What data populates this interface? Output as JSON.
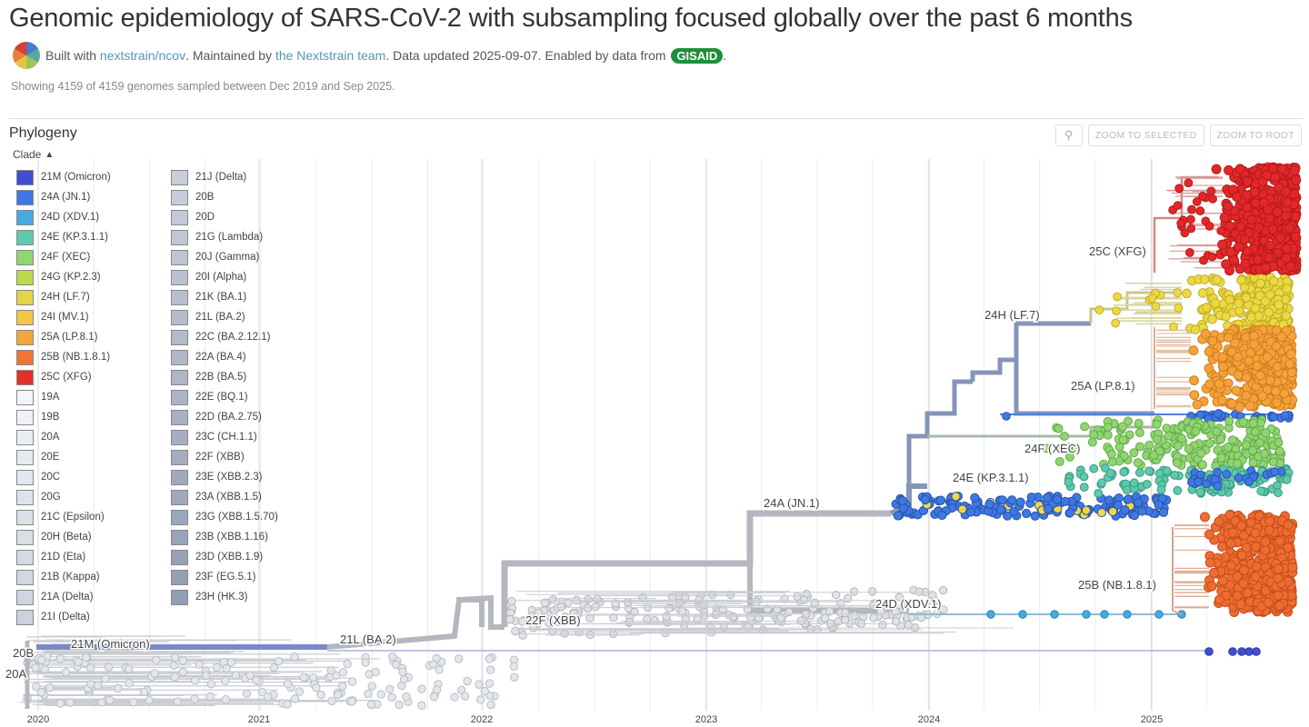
{
  "header": {
    "title": "Genomic epidemiology of SARS-CoV-2 with subsampling focused globally over the past 6 months",
    "built_with": "Built with",
    "build_link": "nextstrain/ncov",
    "maintained_by": ". Maintained by",
    "maintainer_link": "the Nextstrain team",
    "data_updated": ". Data updated 2025-09-07. Enabled by data from",
    "gisaid": "GISAID",
    "period": ".",
    "summary": "Showing 4159 of 4159 genomes sampled between Dec 2019 and Sep 2025."
  },
  "panel": {
    "title": "Phylogeny",
    "toolbar": {
      "zoom_icon": "search-icon",
      "zoom_selected": "ZOOM TO SELECTED",
      "zoom_root": "ZOOM TO ROOT"
    },
    "legend_title": "Clade",
    "legend_col1": [
      {
        "label": "21M (Omicron)",
        "color": "#3f4fd4"
      },
      {
        "label": "24A (JN.1)",
        "color": "#3e78e4"
      },
      {
        "label": "24D (XDV.1)",
        "color": "#46a9e0"
      },
      {
        "label": "24E (KP.3.1.1)",
        "color": "#5fc9ad"
      },
      {
        "label": "24F (XEC)",
        "color": "#8fd670"
      },
      {
        "label": "24G (KP.2.3)",
        "color": "#bbd84f"
      },
      {
        "label": "24H (LF.7)",
        "color": "#e3d445"
      },
      {
        "label": "24I (MV.1)",
        "color": "#f3c542"
      },
      {
        "label": "25A (LP.8.1)",
        "color": "#f3a43c"
      },
      {
        "label": "25B (NB.1.8.1)",
        "color": "#ee7534"
      },
      {
        "label": "25C (XFG)",
        "color": "#e2302b"
      },
      {
        "label": "19A",
        "color": "#f2f5fa"
      },
      {
        "label": "19B",
        "color": "#eef2f7"
      },
      {
        "label": "20A",
        "color": "#eaeef4"
      },
      {
        "label": "20E",
        "color": "#e6eaf1"
      },
      {
        "label": "20C",
        "color": "#e2e6ee"
      },
      {
        "label": "20G",
        "color": "#dee3eb"
      },
      {
        "label": "21C (Epsilon)",
        "color": "#dbe0e8"
      },
      {
        "label": "20H (Beta)",
        "color": "#d8dde6"
      },
      {
        "label": "21D (Eta)",
        "color": "#d5dae3"
      },
      {
        "label": "21B (Kappa)",
        "color": "#d2d8e1"
      },
      {
        "label": "21A (Delta)",
        "color": "#cfd5df"
      },
      {
        "label": "21I (Delta)",
        "color": "#ccd2dd"
      }
    ],
    "legend_col2": [
      {
        "label": "21J (Delta)",
        "color": "#c9cfda"
      },
      {
        "label": "20B",
        "color": "#c6ccd8"
      },
      {
        "label": "20D",
        "color": "#c3c9d6"
      },
      {
        "label": "21G (Lambda)",
        "color": "#c0c7d4"
      },
      {
        "label": "20J (Gamma)",
        "color": "#bdc4d2"
      },
      {
        "label": "20I (Alpha)",
        "color": "#bac2d0"
      },
      {
        "label": "21K (BA.1)",
        "color": "#b7bfce"
      },
      {
        "label": "21L (BA.2)",
        "color": "#b5bdcc"
      },
      {
        "label": "22C (BA.2.12.1)",
        "color": "#b2bbca"
      },
      {
        "label": "22A (BA.4)",
        "color": "#b0b8c8"
      },
      {
        "label": "22B (BA.5)",
        "color": "#adb6c6"
      },
      {
        "label": "22E (BQ.1)",
        "color": "#abb4c5"
      },
      {
        "label": "22D (BA.2.75)",
        "color": "#a8b1c3"
      },
      {
        "label": "23C (CH.1.1)",
        "color": "#a6afc1"
      },
      {
        "label": "22F (XBB)",
        "color": "#a3adbf"
      },
      {
        "label": "23E (XBB.2.3)",
        "color": "#a1aabd"
      },
      {
        "label": "23A (XBB.1.5)",
        "color": "#9fa8bc"
      },
      {
        "label": "23G (XBB.1.5.70)",
        "color": "#9ca6ba"
      },
      {
        "label": "23B (XBB.1.16)",
        "color": "#9aa4b8"
      },
      {
        "label": "23D (XBB.1.9)",
        "color": "#98a1b6"
      },
      {
        "label": "23F (EG.5.1)",
        "color": "#959fb4"
      },
      {
        "label": "23H (HK.3)",
        "color": "#939db3"
      }
    ],
    "clade_labels": [
      "25C (XFG)",
      "24H (LF.7)",
      "25A (LP.8.1)",
      "24F (XEC)",
      "24E (KP.3.1.1)",
      "24A (JN.1)",
      "25B (NB.1.8.1)",
      "24D (XDV.1)",
      "22F (XBB)",
      "21L (BA.2)",
      "21M (Omicron)",
      "20B",
      "20A"
    ],
    "axis_years": [
      "2020",
      "2021",
      "2022",
      "2023",
      "2024",
      "2025"
    ]
  }
}
